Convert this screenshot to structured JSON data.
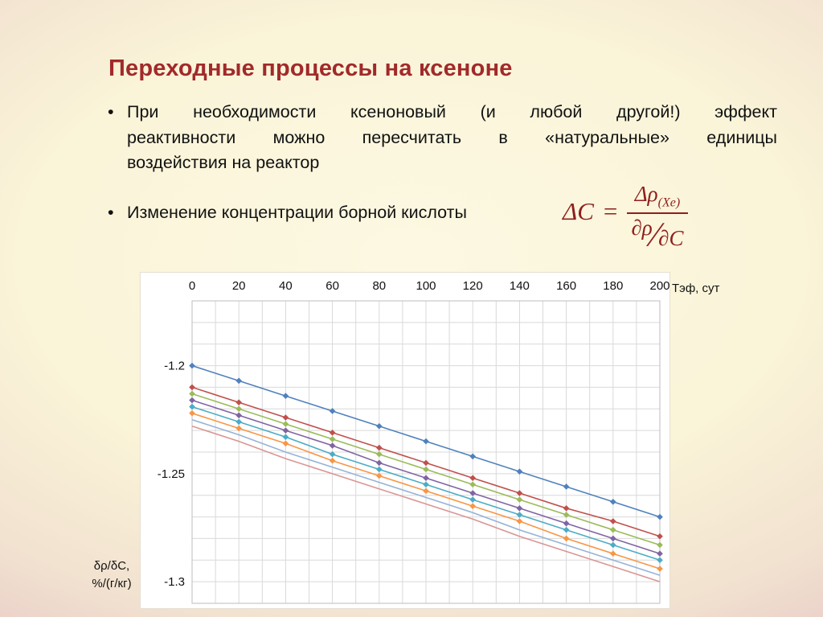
{
  "slide": {
    "title": "Переходные процессы на ксеноне",
    "bullet1_lines": [
      "При необходимости ксеноновый (и любой другой!) эффект",
      "реактивности можно пересчитать в «натуральные» единицы",
      "воздействия на реактор"
    ],
    "bullet2": "Изменение концентрации борной кислоты",
    "formula": {
      "lhs": "ΔC",
      "equals": "=",
      "numerator": "Δρ",
      "numerator_sub": "(Xe)",
      "den_first": "∂ρ",
      "den_slash": "∕",
      "den_second": "∂C"
    }
  },
  "chart_data": {
    "type": "line",
    "title": "",
    "legend": "none",
    "grid": "on",
    "x_axis": {
      "label": "Тэф, сут",
      "min": 0,
      "max": 200,
      "minor_step": 10,
      "ticks": [
        0,
        20,
        40,
        60,
        80,
        100,
        120,
        140,
        160,
        180,
        200
      ]
    },
    "y_axis": {
      "label_line1": "δρ/δС,",
      "label_line2": "%/(г/кг)",
      "min": -1.31,
      "max": -1.17,
      "grid_step": 0.01,
      "ticks": [
        -1.2,
        -1.25,
        -1.3
      ]
    },
    "x": [
      0,
      20,
      40,
      60,
      80,
      100,
      120,
      140,
      160,
      180,
      200
    ],
    "series": [
      {
        "name": "series-1",
        "color": "#4F81BD",
        "marker": true,
        "values": [
          -1.2,
          -1.207,
          -1.214,
          -1.221,
          -1.228,
          -1.235,
          -1.242,
          -1.249,
          -1.256,
          -1.263,
          -1.27
        ]
      },
      {
        "name": "series-2",
        "color": "#C0504D",
        "marker": true,
        "values": [
          -1.21,
          -1.217,
          -1.224,
          -1.231,
          -1.238,
          -1.245,
          -1.252,
          -1.259,
          -1.266,
          -1.272,
          -1.279
        ]
      },
      {
        "name": "series-3",
        "color": "#9BBB59",
        "marker": true,
        "values": [
          -1.213,
          -1.22,
          -1.227,
          -1.234,
          -1.241,
          -1.248,
          -1.255,
          -1.262,
          -1.269,
          -1.276,
          -1.283
        ]
      },
      {
        "name": "series-4",
        "color": "#8064A2",
        "marker": true,
        "values": [
          -1.216,
          -1.223,
          -1.23,
          -1.237,
          -1.245,
          -1.252,
          -1.259,
          -1.266,
          -1.273,
          -1.28,
          -1.287
        ]
      },
      {
        "name": "series-5",
        "color": "#4BACC6",
        "marker": true,
        "values": [
          -1.219,
          -1.226,
          -1.233,
          -1.241,
          -1.248,
          -1.255,
          -1.262,
          -1.269,
          -1.276,
          -1.283,
          -1.29
        ]
      },
      {
        "name": "series-6",
        "color": "#F79646",
        "marker": true,
        "values": [
          -1.222,
          -1.229,
          -1.236,
          -1.244,
          -1.251,
          -1.258,
          -1.265,
          -1.272,
          -1.28,
          -1.287,
          -1.294
        ]
      },
      {
        "name": "series-7",
        "color": "#95B3D7",
        "marker": false,
        "values": [
          -1.225,
          -1.232,
          -1.24,
          -1.247,
          -1.254,
          -1.261,
          -1.268,
          -1.276,
          -1.283,
          -1.29,
          -1.297
        ]
      },
      {
        "name": "series-8",
        "color": "#D99694",
        "marker": false,
        "values": [
          -1.228,
          -1.235,
          -1.243,
          -1.25,
          -1.257,
          -1.264,
          -1.271,
          -1.279,
          -1.286,
          -1.293,
          -1.3
        ]
      }
    ]
  }
}
